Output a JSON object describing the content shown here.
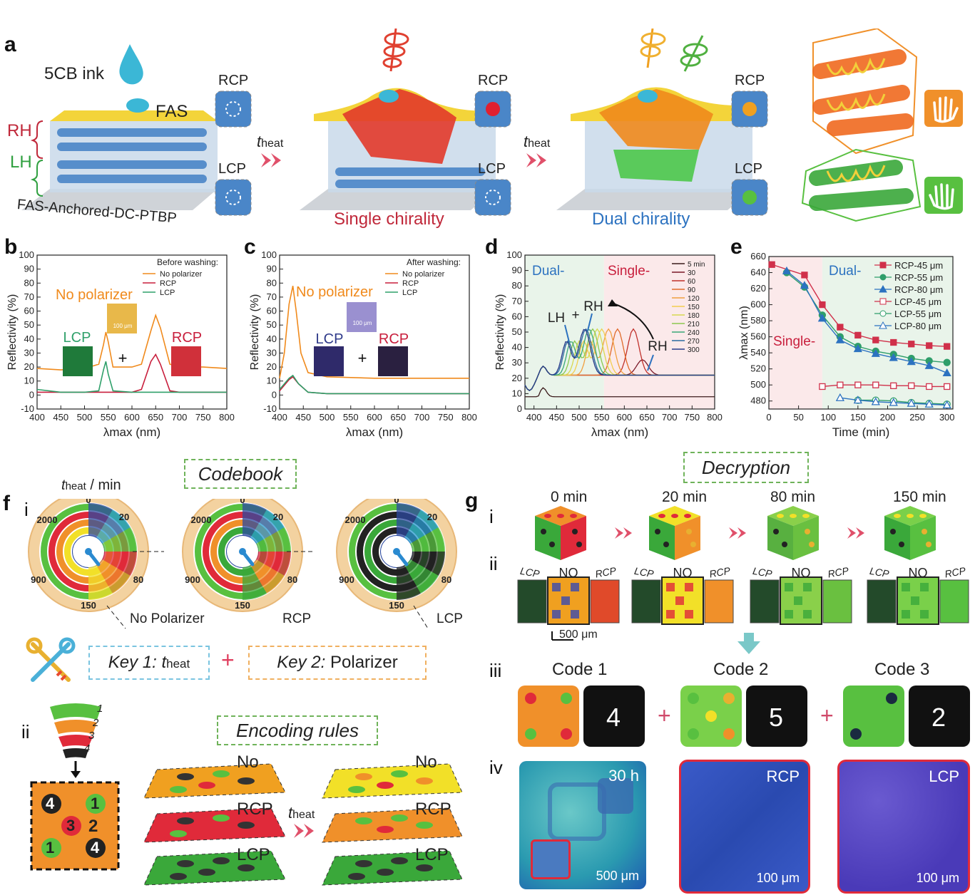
{
  "panel_a": {
    "letter": "a",
    "ink": "5CB ink",
    "fas": "FAS",
    "rh": "RH",
    "lh": "LH",
    "substrate": "FAS-Anchored-DC-PTBP",
    "rcp": "RCP",
    "lcp": "LCP",
    "t_heat": "t",
    "t_sub": "heat",
    "single": "Single chirality",
    "dual": "Dual chirality"
  },
  "chart_data": [
    {
      "id": "b",
      "type": "line",
      "legend_title": "Before washing:",
      "xlabel": "λmax (nm)",
      "ylabel": "Reflectivity (%)",
      "xlim": [
        400,
        800
      ],
      "ylim": [
        -10,
        100
      ],
      "xticks": [
        "400",
        "450",
        "500",
        "550",
        "600",
        "650",
        "700",
        "750",
        "800"
      ],
      "yticks": [
        "-10",
        "0",
        "10",
        "20",
        "30",
        "40",
        "50",
        "60",
        "70",
        "80",
        "90",
        "100"
      ],
      "series": [
        {
          "name": "No polarizer",
          "color": "#f08a1c",
          "x": [
            400,
            450,
            500,
            530,
            540,
            545,
            550,
            560,
            600,
            620,
            640,
            650,
            660,
            680,
            700,
            750,
            800
          ],
          "y": [
            19,
            18,
            19,
            22,
            36,
            45,
            38,
            20,
            20,
            22,
            46,
            57,
            48,
            22,
            20,
            20,
            19
          ]
        },
        {
          "name": "RCP",
          "color": "#c81e3c",
          "x": [
            400,
            450,
            500,
            600,
            620,
            640,
            650,
            660,
            680,
            700,
            800
          ],
          "y": [
            2,
            2,
            2,
            2,
            4,
            24,
            29,
            22,
            3,
            2,
            2
          ]
        },
        {
          "name": "LCP",
          "color": "#2fa06a",
          "x": [
            400,
            450,
            500,
            530,
            540,
            545,
            550,
            560,
            600,
            800
          ],
          "y": [
            4,
            2,
            2,
            3,
            18,
            24,
            15,
            3,
            2,
            2
          ]
        }
      ],
      "annotations": {
        "no_polarizer": "No polarizer",
        "lcp": "LCP",
        "rcp": "RCP",
        "scale": "100 μm",
        "plus": "+"
      }
    },
    {
      "id": "c",
      "type": "line",
      "legend_title": "After washing:",
      "xlabel": "λmax (nm)",
      "ylabel": "Reflectivity (%)",
      "xlim": [
        400,
        800
      ],
      "ylim": [
        -10,
        100
      ],
      "xticks": [
        "400",
        "450",
        "500",
        "550",
        "600",
        "650",
        "700",
        "750",
        "800"
      ],
      "yticks": [
        "-10",
        "0",
        "10",
        "20",
        "30",
        "40",
        "50",
        "60",
        "70",
        "80",
        "90",
        "100"
      ],
      "series": [
        {
          "name": "No polarizer",
          "color": "#f08a1c",
          "x": [
            400,
            410,
            420,
            428,
            435,
            445,
            460,
            500,
            600,
            700,
            800
          ],
          "y": [
            12,
            30,
            65,
            78,
            60,
            30,
            16,
            13,
            12,
            12,
            12
          ]
        },
        {
          "name": "RCP",
          "color": "#c81e3c",
          "x": [
            400,
            420,
            428,
            440,
            460,
            500,
            800
          ],
          "y": [
            3,
            11,
            13,
            8,
            2,
            1,
            1
          ]
        },
        {
          "name": "LCP",
          "color": "#2fa06a",
          "x": [
            400,
            420,
            428,
            440,
            460,
            500,
            800
          ],
          "y": [
            4,
            12,
            14,
            8,
            2,
            1,
            1
          ]
        }
      ],
      "annotations": {
        "no_polarizer": "No polarizer",
        "lcp": "LCP",
        "rcp": "RCP",
        "scale": "100 μm",
        "plus": "+"
      }
    },
    {
      "id": "d",
      "type": "line",
      "xlabel": "λmax (nm)",
      "ylabel": "Reflectivity (%)",
      "xlim": [
        380,
        800
      ],
      "ylim": [
        0,
        100
      ],
      "xticks": [
        "400",
        "450",
        "500",
        "550",
        "600",
        "650",
        "700",
        "750",
        "800"
      ],
      "yticks": [
        "0",
        "10",
        "20",
        "30",
        "40",
        "50",
        "60",
        "70",
        "80",
        "90",
        "100"
      ],
      "legend": [
        "5 min",
        "30",
        "60",
        "90",
        "120",
        "150",
        "180",
        "210",
        "240",
        "270",
        "300"
      ],
      "regions": {
        "dual": "Dual-",
        "single": "Single-"
      },
      "labels": {
        "lh": "LH",
        "rh": "RH",
        "plus": "+"
      },
      "series_peaks": [
        {
          "name": "5 min",
          "color": "#3a1a1a",
          "peak": 0
        },
        {
          "name": "30",
          "color": "#7a1828",
          "peak": 640
        },
        {
          "name": "60",
          "color": "#c0302a",
          "peak": 620
        },
        {
          "name": "90",
          "color": "#e06a2a",
          "peak": 585
        },
        {
          "name": "120",
          "color": "#f0a040",
          "peak": 565
        },
        {
          "name": "150",
          "color": "#f2cd50",
          "peak": 550
        },
        {
          "name": "180",
          "color": "#d8d850",
          "peak": 540
        },
        {
          "name": "210",
          "color": "#8cc850",
          "peak": 530
        },
        {
          "name": "240",
          "color": "#3aa878",
          "peak": 522
        },
        {
          "name": "270",
          "color": "#2a6aa0",
          "peak": 515
        },
        {
          "name": "300",
          "color": "#283a8a",
          "peak": 512
        }
      ]
    },
    {
      "id": "e",
      "type": "scatter",
      "xlabel": "Time (min)",
      "ylabel": "λmax (nm)",
      "xlim": [
        0,
        310
      ],
      "ylim": [
        470,
        660
      ],
      "xticks": [
        "0",
        "50",
        "100",
        "150",
        "200",
        "250",
        "300"
      ],
      "yticks": [
        "480",
        "500",
        "520",
        "540",
        "560",
        "580",
        "600",
        "620",
        "640",
        "660"
      ],
      "regions": {
        "single": "Single-",
        "dual": "Dual-"
      },
      "series": [
        {
          "name": "RCP-45 μm",
          "color": "#d0304a",
          "marker": "square",
          "filled": true,
          "x": [
            5,
            60,
            90,
            120,
            150,
            180,
            210,
            240,
            270,
            300
          ],
          "y": [
            650,
            637,
            600,
            572,
            562,
            556,
            553,
            551,
            549,
            548
          ]
        },
        {
          "name": "RCP-55 μm",
          "color": "#2f9e6a",
          "marker": "circle",
          "filled": true,
          "x": [
            30,
            60,
            90,
            120,
            150,
            180,
            210,
            240,
            270,
            300
          ],
          "y": [
            640,
            622,
            587,
            560,
            548,
            542,
            538,
            533,
            530,
            528
          ]
        },
        {
          "name": "RCP-80 μm",
          "color": "#2c72c0",
          "marker": "triangle",
          "filled": true,
          "x": [
            30,
            60,
            90,
            120,
            150,
            180,
            210,
            240,
            270,
            300
          ],
          "y": [
            642,
            624,
            583,
            556,
            545,
            539,
            534,
            529,
            524,
            515
          ]
        },
        {
          "name": "LCP-45 μm",
          "color": "#d0304a",
          "marker": "square",
          "filled": false,
          "x": [
            90,
            120,
            150,
            180,
            210,
            240,
            270,
            300
          ],
          "y": [
            498,
            500,
            500,
            500,
            499,
            499,
            498,
            498
          ]
        },
        {
          "name": "LCP-55 μm",
          "color": "#2f9e6a",
          "marker": "circle",
          "filled": false,
          "x": [
            150,
            180,
            210,
            240,
            270,
            300
          ],
          "y": [
            481,
            481,
            480,
            478,
            477,
            476
          ]
        },
        {
          "name": "LCP-80 μm",
          "color": "#2c72c0",
          "marker": "triangle",
          "filled": false,
          "x": [
            120,
            150,
            180,
            210,
            240,
            270,
            300
          ],
          "y": [
            484,
            481,
            479,
            478,
            477,
            476,
            475
          ]
        }
      ]
    }
  ],
  "panel_f": {
    "letter": "f",
    "codebook": "Codebook",
    "sub_i": "i",
    "sub_ii": "ii",
    "theat_unit": "/ min",
    "dial_ticks": [
      "0",
      "20",
      "80",
      "150",
      "900",
      "2000"
    ],
    "dial_labels": [
      "No Polarizer",
      "RCP",
      "LCP"
    ],
    "key1": "Key 1: t",
    "key1_sub": "heat",
    "plus": "+",
    "key2": "Key 2:",
    "key2_value": "Polarizer",
    "encoding": "Encoding rules",
    "layers": [
      "1",
      "2",
      "3",
      "4"
    ],
    "code_grid": [
      "4",
      "1",
      "3",
      "2",
      "1",
      "4"
    ],
    "rows": [
      "No",
      "RCP",
      "LCP"
    ],
    "theat": "t",
    "theat_sub": "heat"
  },
  "panel_g": {
    "letter": "g",
    "decryption": "Decryption",
    "sub_i": "i",
    "sub_ii": "ii",
    "sub_iii": "iii",
    "sub_iv": "iv",
    "times": [
      "0 min",
      "20 min",
      "80 min",
      "150 min"
    ],
    "views": [
      "LCP",
      "NO",
      "RCP"
    ],
    "scale_ii": "500 μm",
    "codes": [
      {
        "label": "Code 1",
        "digit": "4"
      },
      {
        "label": "Code 2",
        "digit": "5"
      },
      {
        "label": "Code 3",
        "digit": "2"
      }
    ],
    "plus": "+",
    "micro": [
      {
        "label": "30 h",
        "scale": "500 μm"
      },
      {
        "label": "RCP",
        "scale": "100 μm"
      },
      {
        "label": "LCP",
        "scale": "100 μm"
      }
    ]
  },
  "colors": {
    "orange": "#f0902a",
    "red": "#e02a3a",
    "green": "#3aa84a",
    "blue": "#2c72c0",
    "lightgreen": "#e9f4ea",
    "pink": "#fbe9ea"
  }
}
